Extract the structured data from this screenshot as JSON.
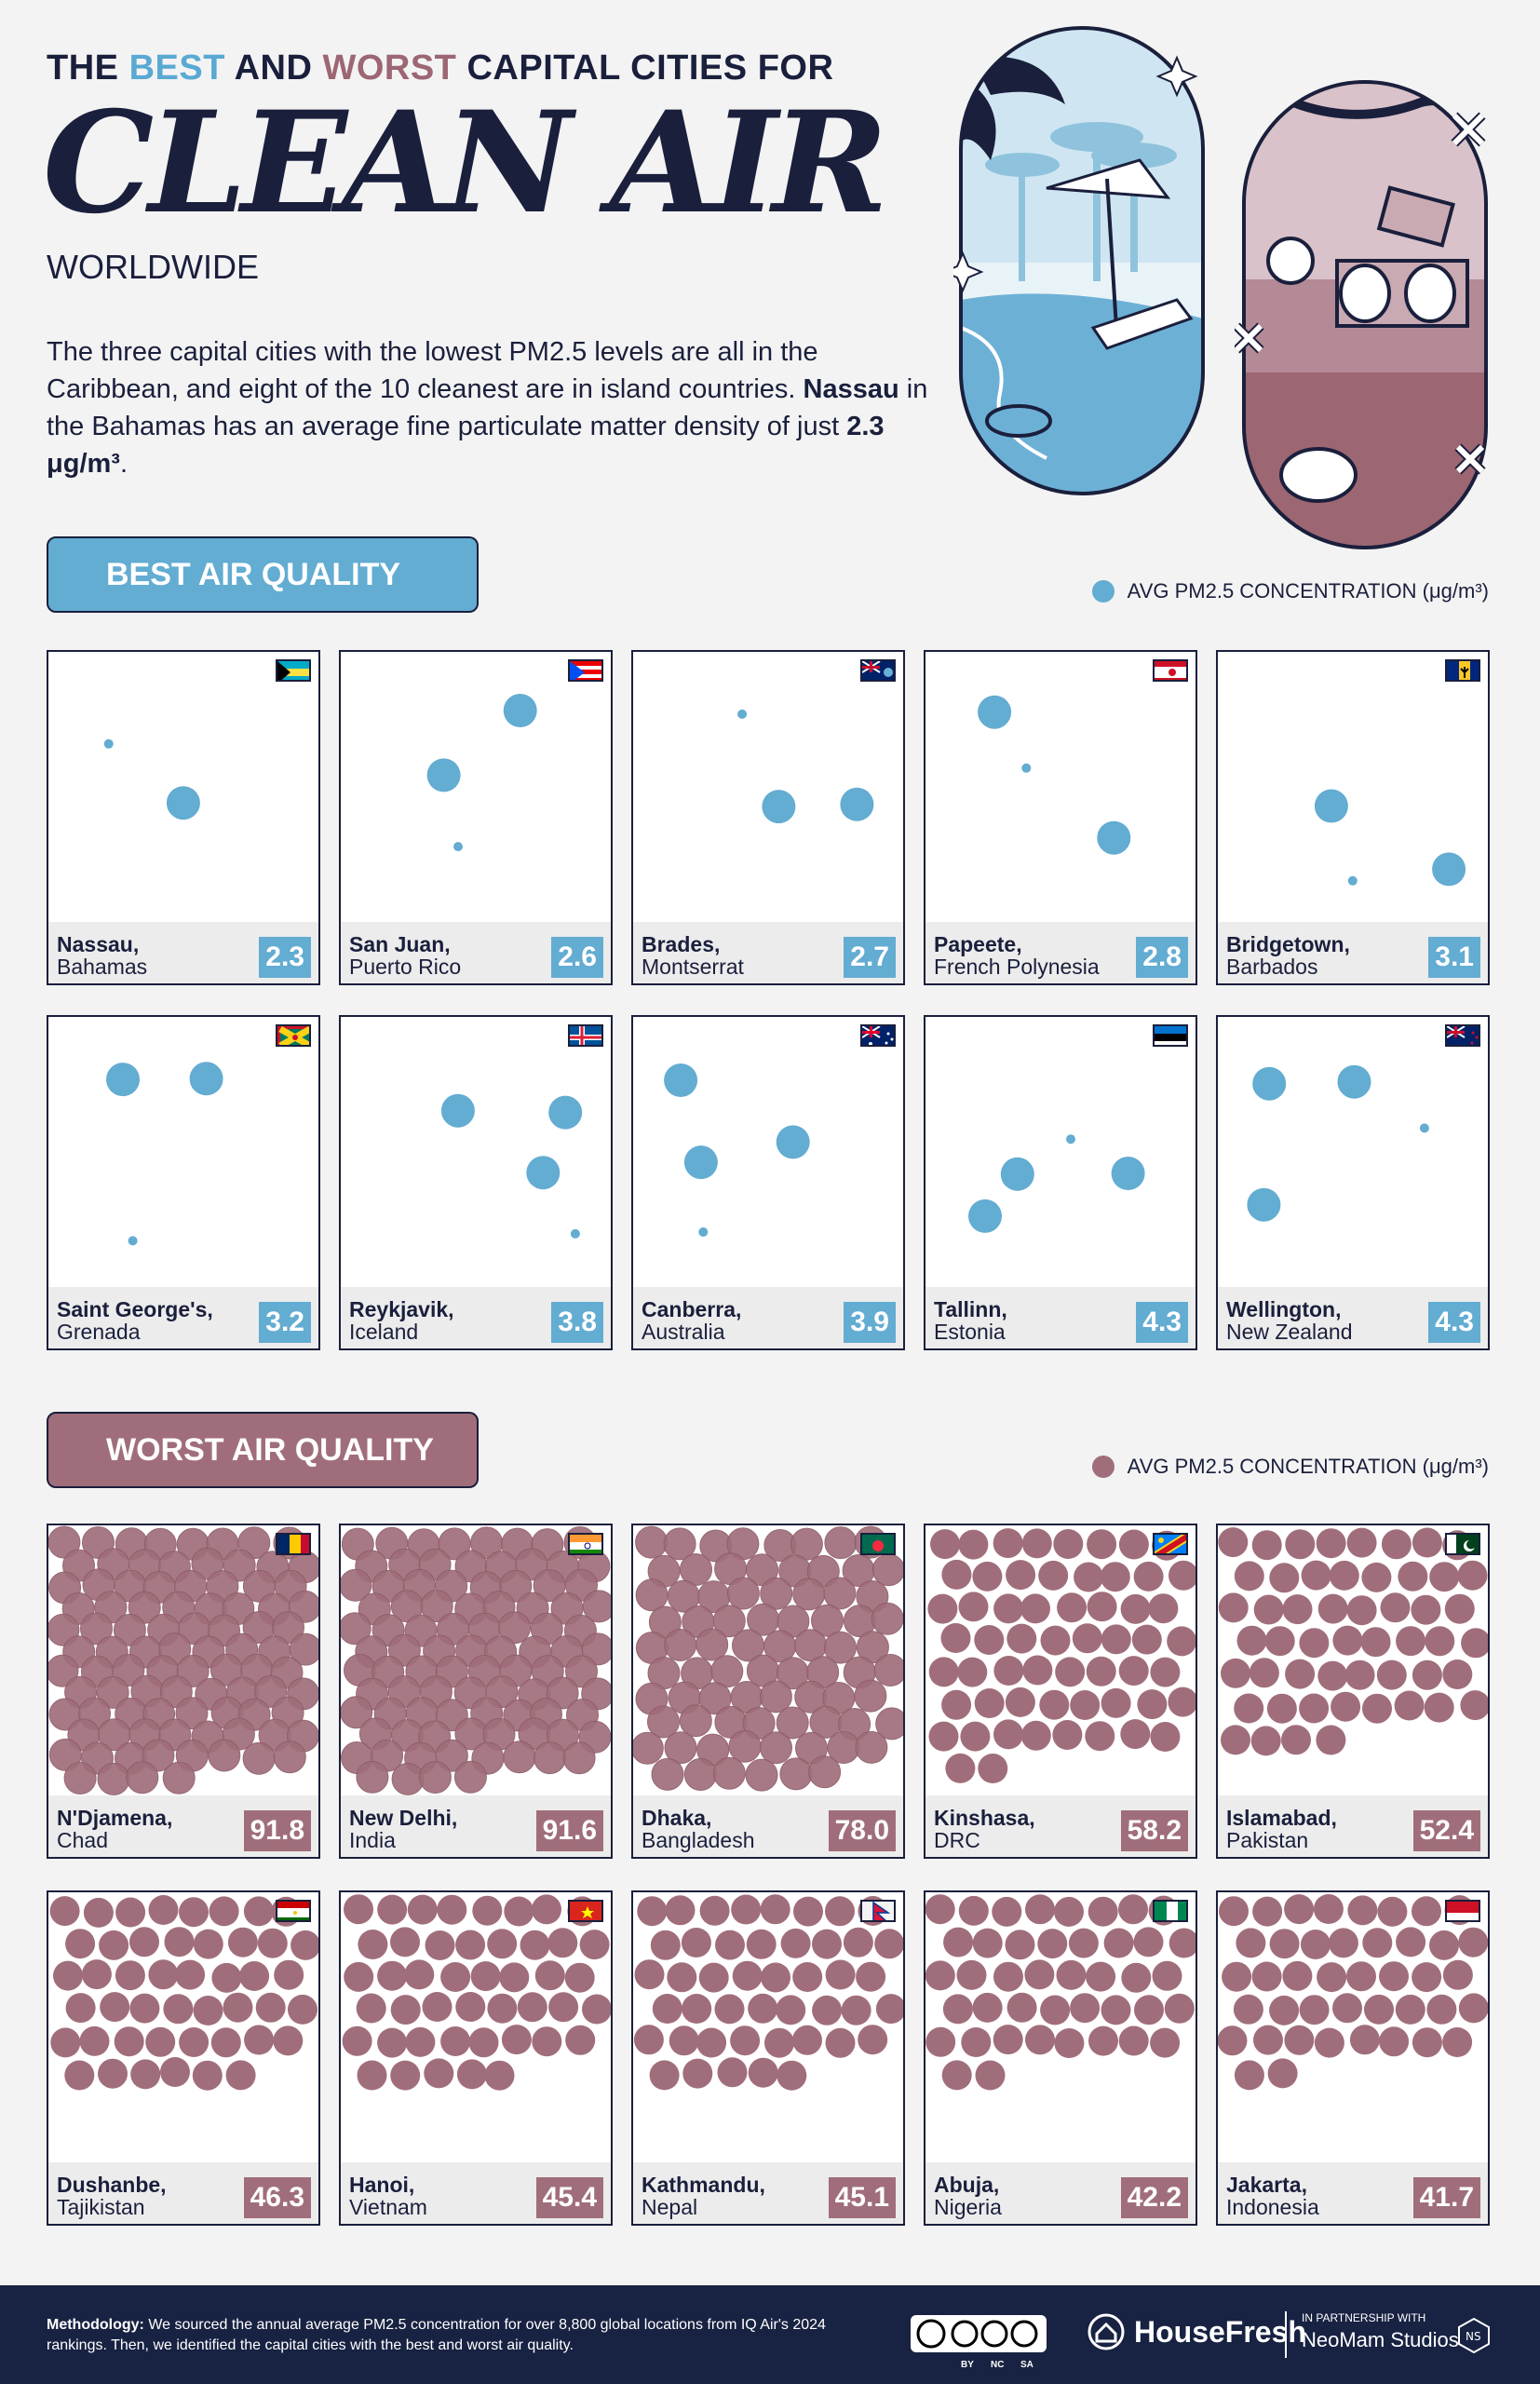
{
  "header": {
    "kicker_pre": "THE ",
    "kicker_best": "BEST",
    "kicker_mid": " AND ",
    "kicker_worst": "WORST",
    "kicker_post": " CAPITAL CITIES FOR",
    "title": "CLEAN AIR",
    "subtitle": "WORLDWIDE",
    "intro_part1": "The three capital cities with the lowest PM2.5 levels are all in the Caribbean, and eight of the 10 cleanest are in island countries. ",
    "intro_bold1": "Nassau",
    "intro_part2": " in the Bahamas has an average fine particulate matter density of just ",
    "intro_bold2": "2.3 μg/m³",
    "intro_part3": "."
  },
  "sections": {
    "best_label": "BEST AIR QUALITY",
    "worst_label": "WORST AIR QUALITY",
    "legend_label": "AVG PM2.5 CONCENTRATION (μg/m³)"
  },
  "colors": {
    "best": "#63acd2",
    "worst": "#a06e7a",
    "navy": "#1a1f3c"
  },
  "chart_data": {
    "type": "bar",
    "unit": "μg/m³",
    "measure": "AVG PM2.5 CONCENTRATION",
    "best": [
      {
        "city": "Nassau",
        "country": "Bahamas",
        "value": 2.3,
        "value_label": "2.3",
        "flag": "bahamas"
      },
      {
        "city": "San Juan",
        "country": "Puerto Rico",
        "value": 2.6,
        "value_label": "2.6",
        "flag": "puerto-rico"
      },
      {
        "city": "Brades",
        "country": "Montserrat",
        "value": 2.7,
        "value_label": "2.7",
        "flag": "montserrat"
      },
      {
        "city": "Papeete",
        "country": "French Polynesia",
        "value": 2.8,
        "value_label": "2.8",
        "flag": "french-polynesia"
      },
      {
        "city": "Bridgetown",
        "country": "Barbados",
        "value": 3.1,
        "value_label": "3.1",
        "flag": "barbados"
      },
      {
        "city": "Saint George's",
        "country": "Grenada",
        "value": 3.2,
        "value_label": "3.2",
        "flag": "grenada"
      },
      {
        "city": "Reykjavik",
        "country": "Iceland",
        "value": 3.8,
        "value_label": "3.8",
        "flag": "iceland"
      },
      {
        "city": "Canberra",
        "country": "Australia",
        "value": 3.9,
        "value_label": "3.9",
        "flag": "australia"
      },
      {
        "city": "Tallinn",
        "country": "Estonia",
        "value": 4.3,
        "value_label": "4.3",
        "flag": "estonia"
      },
      {
        "city": "Wellington",
        "country": "New Zealand",
        "value": 4.3,
        "value_label": "4.3",
        "flag": "new-zealand"
      }
    ],
    "worst": [
      {
        "city": "N'Djamena",
        "country": "Chad",
        "value": 91.8,
        "value_label": "91.8",
        "flag": "chad"
      },
      {
        "city": "New Delhi",
        "country": "India",
        "value": 91.6,
        "value_label": "91.6",
        "flag": "india"
      },
      {
        "city": "Dhaka",
        "country": "Bangladesh",
        "value": 78.0,
        "value_label": "78.0",
        "flag": "bangladesh"
      },
      {
        "city": "Kinshasa",
        "country": "DRC",
        "value": 58.2,
        "value_label": "58.2",
        "flag": "drc"
      },
      {
        "city": "Islamabad",
        "country": "Pakistan",
        "value": 52.4,
        "value_label": "52.4",
        "flag": "pakistan"
      },
      {
        "city": "Dushanbe",
        "country": "Tajikistan",
        "value": 46.3,
        "value_label": "46.3",
        "flag": "tajikistan"
      },
      {
        "city": "Hanoi",
        "country": "Vietnam",
        "value": 45.4,
        "value_label": "45.4",
        "flag": "vietnam"
      },
      {
        "city": "Kathmandu",
        "country": "Nepal",
        "value": 45.1,
        "value_label": "45.1",
        "flag": "nepal"
      },
      {
        "city": "Abuja",
        "country": "Nigeria",
        "value": 42.2,
        "value_label": "42.2",
        "flag": "nigeria"
      },
      {
        "city": "Jakarta",
        "country": "Indonesia",
        "value": 41.7,
        "value_label": "41.7",
        "flag": "indonesia"
      }
    ]
  },
  "footer": {
    "method_bold": "Methodology:",
    "method_text": " We sourced the annual average PM2.5 concentration for over 8,800 global locations from IQ Air's 2024 rankings. Then, we identified the capital cities with the best and worst air quality.",
    "license_icon": "creative-commons-by-nc-sa-icon",
    "license_by": "BY",
    "license_nc": "NC",
    "license_sa": "SA",
    "brand": "HouseFresh",
    "partner_small": "IN PARTNERSHIP WITH",
    "partner_name": "NeoMam Studios"
  }
}
